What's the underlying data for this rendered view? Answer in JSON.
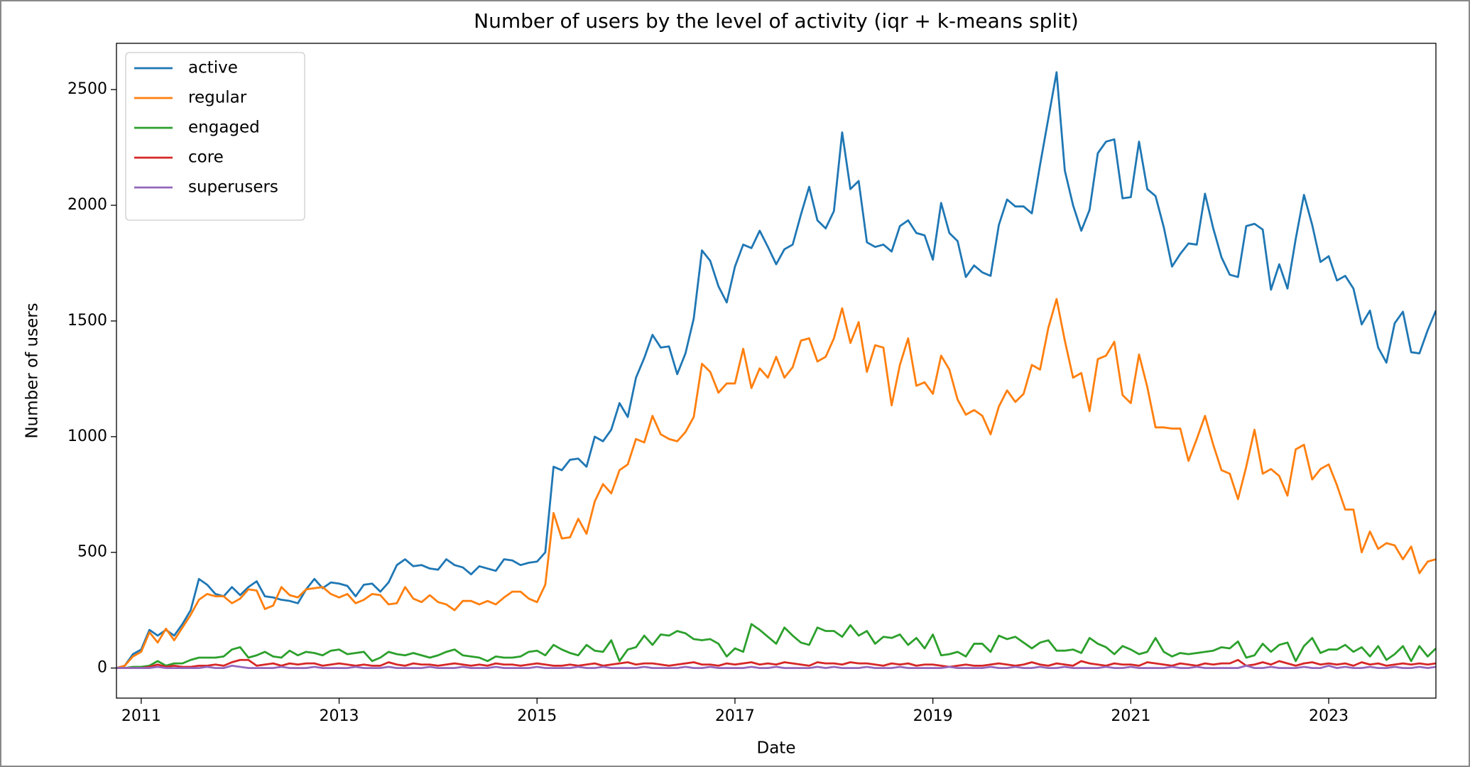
{
  "chart_data": {
    "type": "line",
    "title": "Number of users by the level of activity (iqr + k-means split)",
    "x_label": "Date",
    "y_label": "Number of users",
    "legend": "upper left",
    "grid": false,
    "xlim": [
      "2010-10",
      "2024-02"
    ],
    "xticks": [
      {
        "value": "2011-01",
        "label": "2011"
      },
      {
        "value": "2013-01",
        "label": "2013"
      },
      {
        "value": "2015-01",
        "label": "2015"
      },
      {
        "value": "2017-01",
        "label": "2017"
      },
      {
        "value": "2019-01",
        "label": "2019"
      },
      {
        "value": "2021-01",
        "label": "2021"
      },
      {
        "value": "2023-01",
        "label": "2023"
      }
    ],
    "ylim": [
      -130,
      2700
    ],
    "yticks": [
      0,
      500,
      1000,
      1500,
      2000,
      2500
    ],
    "x": [
      "2010-10",
      "2010-11",
      "2010-12",
      "2011-01",
      "2011-02",
      "2011-03",
      "2011-04",
      "2011-05",
      "2011-06",
      "2011-07",
      "2011-08",
      "2011-09",
      "2011-10",
      "2011-11",
      "2011-12",
      "2012-01",
      "2012-02",
      "2012-03",
      "2012-04",
      "2012-05",
      "2012-06",
      "2012-07",
      "2012-08",
      "2012-09",
      "2012-10",
      "2012-11",
      "2012-12",
      "2013-01",
      "2013-02",
      "2013-03",
      "2013-04",
      "2013-05",
      "2013-06",
      "2013-07",
      "2013-08",
      "2013-09",
      "2013-10",
      "2013-11",
      "2013-12",
      "2014-01",
      "2014-02",
      "2014-03",
      "2014-04",
      "2014-05",
      "2014-06",
      "2014-07",
      "2014-08",
      "2014-09",
      "2014-10",
      "2014-11",
      "2014-12",
      "2015-01",
      "2015-02",
      "2015-03",
      "2015-04",
      "2015-05",
      "2015-06",
      "2015-07",
      "2015-08",
      "2015-09",
      "2015-10",
      "2015-11",
      "2015-12",
      "2016-01",
      "2016-02",
      "2016-03",
      "2016-04",
      "2016-05",
      "2016-06",
      "2016-07",
      "2016-08",
      "2016-09",
      "2016-10",
      "2016-11",
      "2016-12",
      "2017-01",
      "2017-02",
      "2017-03",
      "2017-04",
      "2017-05",
      "2017-06",
      "2017-07",
      "2017-08",
      "2017-09",
      "2017-10",
      "2017-11",
      "2017-12",
      "2018-01",
      "2018-02",
      "2018-03",
      "2018-04",
      "2018-05",
      "2018-06",
      "2018-07",
      "2018-08",
      "2018-09",
      "2018-10",
      "2018-11",
      "2018-12",
      "2019-01",
      "2019-02",
      "2019-03",
      "2019-04",
      "2019-05",
      "2019-06",
      "2019-07",
      "2019-08",
      "2019-09",
      "2019-10",
      "2019-11",
      "2019-12",
      "2020-01",
      "2020-02",
      "2020-03",
      "2020-04",
      "2020-05",
      "2020-06",
      "2020-07",
      "2020-08",
      "2020-09",
      "2020-10",
      "2020-11",
      "2020-12",
      "2021-01",
      "2021-02",
      "2021-03",
      "2021-04",
      "2021-05",
      "2021-06",
      "2021-07",
      "2021-08",
      "2021-09",
      "2021-10",
      "2021-11",
      "2021-12",
      "2022-01",
      "2022-02",
      "2022-03",
      "2022-04",
      "2022-05",
      "2022-06",
      "2022-07",
      "2022-08",
      "2022-09",
      "2022-10",
      "2022-11",
      "2022-12",
      "2023-01",
      "2023-02",
      "2023-03",
      "2023-04",
      "2023-05",
      "2023-06",
      "2023-07",
      "2023-08",
      "2023-09",
      "2023-10",
      "2023-11",
      "2023-12",
      "2024-01",
      "2024-02"
    ],
    "series": [
      {
        "name": "active",
        "color": "#1f77b4",
        "values": [
          0,
          10,
          60,
          80,
          165,
          140,
          165,
          140,
          190,
          250,
          385,
          360,
          320,
          310,
          350,
          315,
          350,
          375,
          310,
          305,
          295,
          290,
          280,
          340,
          385,
          345,
          370,
          365,
          355,
          310,
          360,
          365,
          330,
          370,
          445,
          470,
          440,
          445,
          430,
          425,
          470,
          445,
          435,
          405,
          440,
          430,
          420,
          470,
          465,
          445,
          455,
          460,
          500,
          870,
          855,
          900,
          905,
          870,
          1000,
          980,
          1030,
          1145,
          1085,
          1255,
          1340,
          1440,
          1385,
          1390,
          1270,
          1360,
          1510,
          1805,
          1760,
          1650,
          1580,
          1735,
          1830,
          1815,
          1890,
          1820,
          1745,
          1810,
          1830,
          1960,
          2080,
          1935,
          1900,
          1975,
          2315,
          2070,
          2105,
          1840,
          1820,
          1830,
          1800,
          1910,
          1935,
          1880,
          1870,
          1765,
          2010,
          1880,
          1845,
          1690,
          1740,
          1710,
          1695,
          1915,
          2025,
          1995,
          1995,
          1965,
          2175,
          2375,
          2575,
          2150,
          2000,
          1890,
          1980,
          2225,
          2275,
          2285,
          2030,
          2035,
          2275,
          2070,
          2040,
          1905,
          1735,
          1790,
          1835,
          1830,
          2050,
          1900,
          1775,
          1700,
          1690,
          1910,
          1920,
          1895,
          1635,
          1745,
          1640,
          1855,
          2045,
          1915,
          1755,
          1780,
          1675,
          1695,
          1640,
          1485,
          1545,
          1385,
          1320,
          1490,
          1540,
          1365,
          1360,
          1460,
          1545
        ]
      },
      {
        "name": "regular",
        "color": "#ff7f0e",
        "values": [
          0,
          10,
          50,
          70,
          155,
          110,
          170,
          120,
          175,
          230,
          295,
          320,
          310,
          310,
          280,
          300,
          340,
          335,
          255,
          270,
          350,
          315,
          305,
          340,
          345,
          350,
          320,
          305,
          320,
          280,
          295,
          320,
          315,
          275,
          280,
          350,
          300,
          285,
          315,
          285,
          275,
          250,
          290,
          290,
          275,
          290,
          275,
          305,
          330,
          330,
          300,
          285,
          360,
          670,
          560,
          565,
          645,
          580,
          720,
          795,
          755,
          855,
          880,
          990,
          975,
          1090,
          1010,
          990,
          980,
          1020,
          1085,
          1315,
          1280,
          1190,
          1230,
          1230,
          1380,
          1210,
          1295,
          1255,
          1345,
          1255,
          1300,
          1415,
          1425,
          1325,
          1345,
          1425,
          1555,
          1405,
          1495,
          1280,
          1395,
          1385,
          1135,
          1310,
          1425,
          1220,
          1235,
          1185,
          1350,
          1290,
          1160,
          1095,
          1115,
          1090,
          1010,
          1130,
          1200,
          1150,
          1185,
          1310,
          1290,
          1470,
          1595,
          1415,
          1255,
          1275,
          1110,
          1335,
          1350,
          1410,
          1180,
          1145,
          1355,
          1215,
          1040,
          1040,
          1035,
          1035,
          895,
          990,
          1090,
          965,
          855,
          840,
          730,
          870,
          1030,
          840,
          860,
          830,
          745,
          945,
          965,
          815,
          860,
          880,
          790,
          685,
          685,
          500,
          590,
          515,
          540,
          530,
          470,
          525,
          410,
          460,
          470
        ]
      },
      {
        "name": "engaged",
        "color": "#2ca02c",
        "values": [
          0,
          0,
          5,
          5,
          10,
          30,
          10,
          20,
          20,
          35,
          45,
          45,
          45,
          50,
          80,
          90,
          45,
          55,
          70,
          50,
          45,
          75,
          55,
          70,
          65,
          55,
          75,
          80,
          60,
          65,
          70,
          30,
          45,
          70,
          60,
          55,
          65,
          55,
          45,
          55,
          70,
          80,
          55,
          50,
          45,
          30,
          50,
          45,
          45,
          50,
          70,
          75,
          55,
          100,
          80,
          65,
          55,
          100,
          75,
          70,
          120,
          30,
          80,
          90,
          140,
          100,
          145,
          140,
          160,
          150,
          125,
          120,
          125,
          105,
          50,
          85,
          70,
          190,
          165,
          135,
          105,
          175,
          140,
          110,
          100,
          175,
          160,
          160,
          135,
          185,
          140,
          160,
          105,
          135,
          130,
          145,
          100,
          130,
          85,
          145,
          55,
          60,
          70,
          50,
          105,
          105,
          70,
          140,
          125,
          135,
          110,
          85,
          110,
          120,
          75,
          75,
          80,
          65,
          130,
          105,
          90,
          60,
          95,
          80,
          60,
          70,
          130,
          70,
          50,
          65,
          60,
          65,
          70,
          75,
          90,
          85,
          115,
          45,
          55,
          105,
          70,
          100,
          110,
          30,
          95,
          130,
          65,
          80,
          80,
          100,
          70,
          90,
          50,
          95,
          35,
          60,
          95,
          30,
          95,
          50,
          85
        ]
      },
      {
        "name": "core",
        "color": "#d62728",
        "values": [
          0,
          0,
          0,
          0,
          5,
          15,
          5,
          10,
          5,
          5,
          10,
          10,
          15,
          10,
          25,
          35,
          35,
          10,
          15,
          20,
          10,
          20,
          15,
          20,
          20,
          10,
          15,
          20,
          15,
          10,
          15,
          10,
          10,
          25,
          15,
          10,
          20,
          15,
          15,
          10,
          15,
          20,
          15,
          10,
          15,
          10,
          20,
          15,
          15,
          10,
          15,
          20,
          15,
          10,
          10,
          15,
          10,
          15,
          20,
          10,
          15,
          20,
          25,
          15,
          20,
          20,
          15,
          10,
          15,
          20,
          25,
          15,
          15,
          10,
          20,
          15,
          20,
          25,
          15,
          20,
          15,
          25,
          20,
          15,
          10,
          25,
          20,
          20,
          15,
          25,
          20,
          20,
          15,
          10,
          20,
          15,
          20,
          10,
          15,
          15,
          10,
          5,
          10,
          15,
          10,
          10,
          15,
          20,
          15,
          10,
          15,
          25,
          15,
          10,
          20,
          15,
          10,
          30,
          20,
          15,
          10,
          20,
          15,
          15,
          10,
          25,
          20,
          15,
          10,
          20,
          15,
          10,
          20,
          15,
          20,
          20,
          35,
          10,
          15,
          25,
          15,
          30,
          20,
          10,
          20,
          25,
          15,
          20,
          15,
          20,
          10,
          25,
          15,
          20,
          10,
          15,
          20,
          15,
          20,
          15,
          20
        ]
      },
      {
        "name": "superusers",
        "color": "#9467bd",
        "values": [
          0,
          0,
          0,
          0,
          0,
          5,
          0,
          0,
          0,
          0,
          0,
          5,
          0,
          0,
          10,
          5,
          0,
          0,
          0,
          0,
          5,
          0,
          0,
          0,
          5,
          0,
          0,
          0,
          0,
          5,
          0,
          0,
          0,
          5,
          0,
          0,
          0,
          0,
          5,
          0,
          0,
          0,
          5,
          0,
          0,
          0,
          5,
          0,
          0,
          0,
          0,
          5,
          0,
          0,
          0,
          0,
          5,
          0,
          0,
          5,
          0,
          0,
          0,
          0,
          5,
          0,
          0,
          0,
          0,
          5,
          0,
          0,
          5,
          0,
          0,
          0,
          0,
          5,
          0,
          0,
          5,
          0,
          0,
          0,
          0,
          5,
          0,
          5,
          0,
          0,
          0,
          5,
          0,
          0,
          0,
          5,
          0,
          0,
          0,
          0,
          0,
          5,
          0,
          0,
          0,
          0,
          5,
          0,
          0,
          5,
          0,
          0,
          5,
          0,
          0,
          5,
          0,
          0,
          0,
          0,
          5,
          0,
          0,
          5,
          0,
          0,
          0,
          0,
          5,
          0,
          0,
          5,
          0,
          0,
          0,
          0,
          0,
          10,
          0,
          0,
          5,
          0,
          0,
          0,
          5,
          0,
          0,
          10,
          0,
          5,
          0,
          0,
          5,
          0,
          0,
          5,
          0,
          0,
          5,
          0,
          5
        ]
      }
    ]
  }
}
